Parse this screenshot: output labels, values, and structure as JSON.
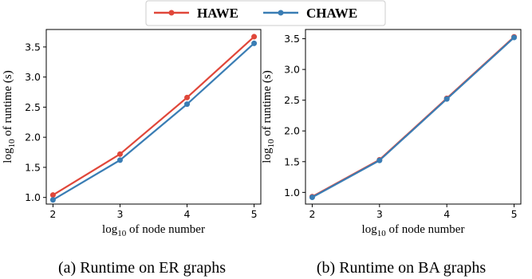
{
  "legend": {
    "entries": [
      {
        "label": "HAWE",
        "color": "#e0473a"
      },
      {
        "label": "CHAWE",
        "color": "#3a7db4"
      }
    ]
  },
  "chart_data": [
    {
      "type": "line",
      "caption": "(a) Runtime on ER graphs",
      "xlabel_prefix": "log",
      "xlabel_sub": "10",
      "xlabel_suffix": " of node number",
      "ylabel_prefix": "log",
      "ylabel_sub": "10",
      "ylabel_suffix": " of runtime (s)",
      "x": [
        2,
        3,
        4,
        5
      ],
      "xticks": [
        "2",
        "3",
        "4",
        "5"
      ],
      "yticks": [
        "1.0",
        "1.5",
        "2.0",
        "2.5",
        "3.0",
        "3.5"
      ],
      "xlim": [
        1.9,
        5.1
      ],
      "ylim": [
        0.89,
        3.79
      ],
      "series": [
        {
          "name": "HAWE",
          "color": "#e0473a",
          "values": [
            1.04,
            1.72,
            2.66,
            3.67
          ]
        },
        {
          "name": "CHAWE",
          "color": "#3a7db4",
          "values": [
            0.96,
            1.62,
            2.55,
            3.56
          ]
        }
      ]
    },
    {
      "type": "line",
      "caption": "(b) Runtime on BA graphs",
      "xlabel_prefix": "log",
      "xlabel_sub": "10",
      "xlabel_suffix": " of node number",
      "ylabel_prefix": "log",
      "ylabel_sub": "10",
      "ylabel_suffix": " of runtime (s)",
      "x": [
        2,
        3,
        4,
        5
      ],
      "xticks": [
        "2",
        "3",
        "4",
        "5"
      ],
      "yticks": [
        "1.0",
        "1.5",
        "2.0",
        "2.5",
        "3.0",
        "3.5"
      ],
      "xlim": [
        1.9,
        5.1
      ],
      "ylim": [
        0.81,
        3.65
      ],
      "series": [
        {
          "name": "HAWE",
          "color": "#e0473a",
          "values": [
            0.93,
            1.53,
            2.53,
            3.53
          ]
        },
        {
          "name": "CHAWE",
          "color": "#3a7db4",
          "values": [
            0.92,
            1.52,
            2.52,
            3.52
          ]
        }
      ]
    }
  ]
}
